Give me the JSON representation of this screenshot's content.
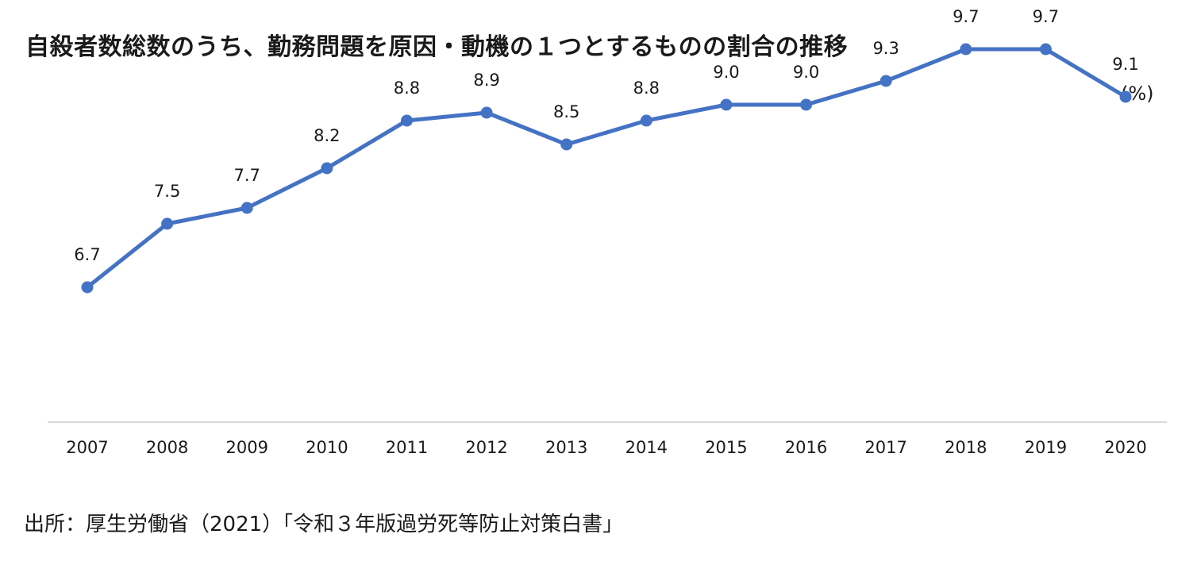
{
  "title": "自殺者数総数のうち、勤務問題を原因・動機の１つとするものの割合の推移",
  "unit_label": "(%)",
  "source": "出所：厚生労働省（2021）「令和３年版過労死等防止対策白書」",
  "colors": {
    "line": "#4472c4",
    "axis": "#d9d9d9"
  },
  "chart_data": {
    "type": "line",
    "title": "自殺者数総数のうち、勤務問題を原因・動機の１つとするものの割合の推移",
    "ylabel": "(%)",
    "xlabel": "",
    "categories": [
      "2007",
      "2008",
      "2009",
      "2010",
      "2011",
      "2012",
      "2013",
      "2014",
      "2015",
      "2016",
      "2017",
      "2018",
      "2019",
      "2020"
    ],
    "series": [
      {
        "values": [
          6.7,
          7.5,
          7.7,
          8.2,
          8.8,
          8.9,
          8.5,
          8.8,
          9.0,
          9.0,
          9.3,
          9.7,
          9.7,
          9.1
        ]
      }
    ],
    "data_labels": [
      "6.7",
      "7.5",
      "7.7",
      "8.2",
      "8.8",
      "8.9",
      "8.5",
      "8.8",
      "9.0",
      "9.0",
      "9.3",
      "9.7",
      "9.7",
      "9.1"
    ],
    "ylim": [
      5.0,
      10.0
    ],
    "grid": false,
    "legend": "none",
    "markers": true
  }
}
